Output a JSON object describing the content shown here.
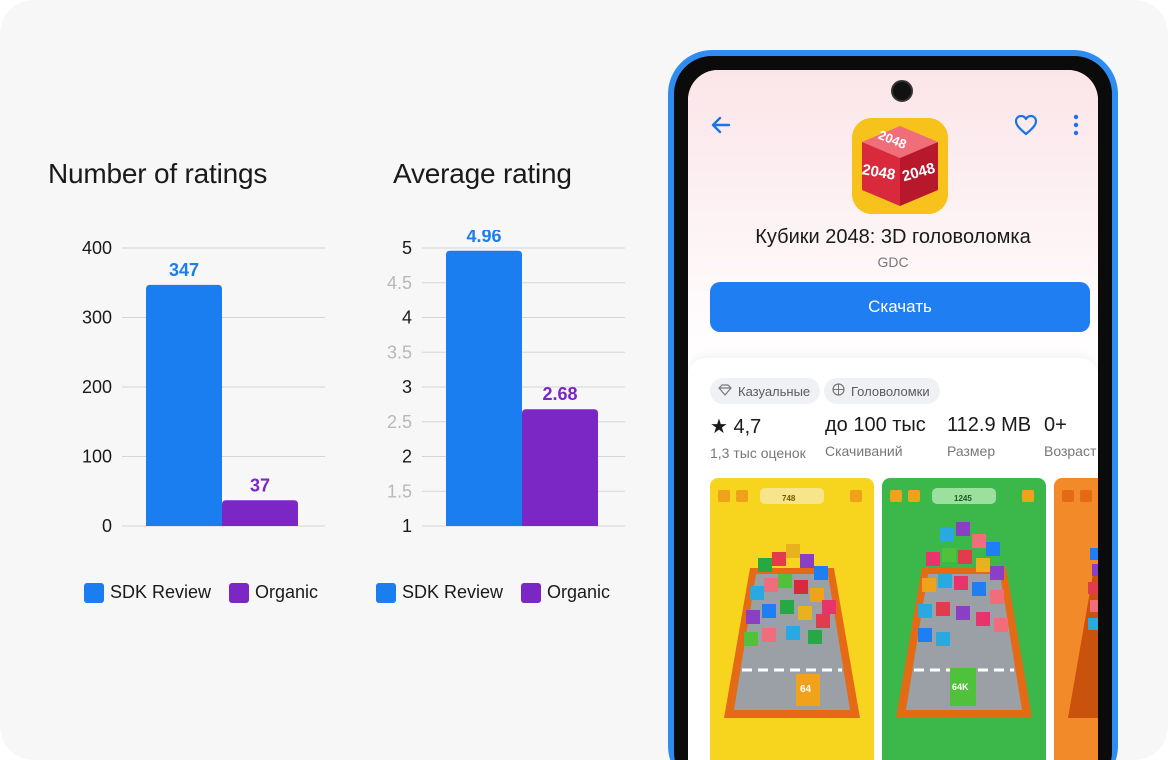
{
  "chart_data": [
    {
      "type": "bar",
      "title": "Number of ratings",
      "categories": [
        "SDK Review",
        "Organic"
      ],
      "values": [
        347,
        37
      ],
      "data_labels": [
        "347",
        "37"
      ],
      "ylim": [
        0,
        400
      ],
      "yticks": [
        "0",
        "100",
        "200",
        "300",
        "400"
      ],
      "grid": true,
      "legend": "bottom"
    },
    {
      "type": "bar",
      "title": "Average rating",
      "categories": [
        "SDK Review",
        "Organic"
      ],
      "values": [
        4.96,
        2.68
      ],
      "data_labels": [
        "4.96",
        "2.68"
      ],
      "ylim": [
        1,
        5
      ],
      "yticks": [
        "1",
        "1.5",
        "2",
        "2.5",
        "3",
        "3.5",
        "4",
        "4.5",
        "5"
      ],
      "grid": true,
      "legend": "bottom"
    }
  ],
  "colors": {
    "sdk": "#1a7df0",
    "organic": "#7b27c6",
    "accent": "#1f7ef2"
  },
  "legend": {
    "sdk": "SDK Review",
    "organic": "Organic"
  },
  "phone": {
    "app_icon_text": "2048",
    "app_name": "Кубики 2048: 3D головоломка",
    "developer": "GDC",
    "install_label": "Скачать",
    "icons": {
      "back": "arrow-left-icon",
      "favorite": "heart-icon",
      "more": "more-vert-icon"
    },
    "chips": [
      {
        "icon": "diamond-icon",
        "label": "Казуальные"
      },
      {
        "icon": "puzzle-icon",
        "label": "Головоломки"
      }
    ],
    "stats": [
      {
        "value": "★ 4,7",
        "label": "1,3 тыс оценок"
      },
      {
        "value": "до 100 тыс",
        "label": "Скачиваний"
      },
      {
        "value": "112.9 MB",
        "label": "Размер"
      },
      {
        "value": "0+",
        "label": "Возраст"
      }
    ],
    "screenshots": [
      {
        "score": "748",
        "bottom_cube": "64"
      },
      {
        "score": "1245",
        "bottom_cube": "64K"
      },
      {
        "score": "",
        "bottom_cube": ""
      }
    ]
  }
}
